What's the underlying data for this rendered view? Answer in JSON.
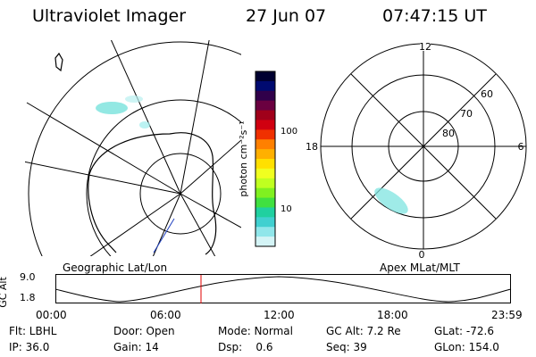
{
  "header": {
    "title": "Ultraviolet Imager",
    "date": "27 Jun 07",
    "time": "07:47:15 UT"
  },
  "left_panel": {
    "label": "Geographic Lat/Lon"
  },
  "right_panel": {
    "label": "Apex MLat/MLT",
    "hour_labels": {
      "top": "12",
      "left": "18",
      "right": "6",
      "bottom": "0"
    },
    "lat_labels": [
      "60",
      "70",
      "80"
    ]
  },
  "colorbar": {
    "label": "photon cm⁻²s⁻¹",
    "ticks": [
      "100",
      "10"
    ],
    "colors": [
      "#000030",
      "#000a70",
      "#30004a",
      "#6a0040",
      "#a0001a",
      "#d00010",
      "#f03000",
      "#ff8000",
      "#ffb000",
      "#ffe000",
      "#f0ff20",
      "#c0ff20",
      "#80f020",
      "#40e040",
      "#20d0a0",
      "#40d0d0",
      "#90e6ea",
      "#d4f4f6"
    ]
  },
  "timeline": {
    "ylabel": "GC Alt",
    "yticks": [
      "9.0",
      "1.8"
    ],
    "xticks": [
      "00:00",
      "06:00",
      "12:00",
      "18:00",
      "23:59"
    ],
    "current_marker_color": "#e00000"
  },
  "info": {
    "flt": "Flt: LBHL",
    "door": "Door: Open",
    "mode": "Mode: Normal",
    "gcalt": "GC Alt: 7.2 Re",
    "glat": "GLat: -72.6",
    "ip": "IP: 36.0",
    "gain": "Gain: 14",
    "dsp": "Dsp:    0.6",
    "seq": "Seq: 39",
    "glon": "GLon: 154.0"
  }
}
